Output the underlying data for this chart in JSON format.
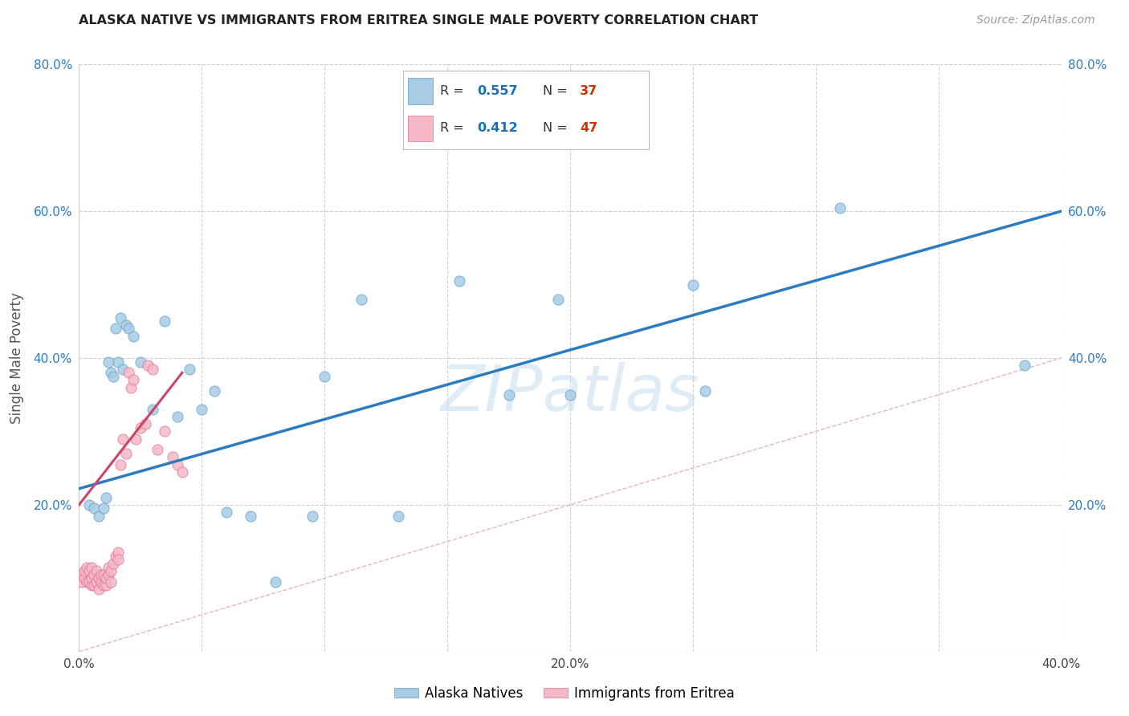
{
  "title": "ALASKA NATIVE VS IMMIGRANTS FROM ERITREA SINGLE MALE POVERTY CORRELATION CHART",
  "source": "Source: ZipAtlas.com",
  "ylabel": "Single Male Poverty",
  "xlim": [
    0.0,
    0.4
  ],
  "ylim": [
    0.0,
    0.8
  ],
  "blue_color": "#a8cce4",
  "blue_edge": "#5b9ec9",
  "pink_color": "#f4b8c8",
  "pink_edge": "#e07090",
  "line_blue": "#2a7bbf",
  "line_pink": "#cc4466",
  "diag_color": "#e0b0b8",
  "watermark_color": "#c5ddf0",
  "alaska_x": [
    0.004,
    0.006,
    0.008,
    0.01,
    0.011,
    0.012,
    0.013,
    0.014,
    0.015,
    0.016,
    0.017,
    0.018,
    0.019,
    0.02,
    0.022,
    0.025,
    0.03,
    0.035,
    0.04,
    0.045,
    0.05,
    0.055,
    0.06,
    0.07,
    0.08,
    0.095,
    0.115,
    0.155,
    0.195,
    0.25,
    0.255,
    0.31,
    0.385,
    0.1,
    0.13,
    0.175,
    0.2
  ],
  "alaska_y": [
    0.2,
    0.195,
    0.185,
    0.195,
    0.21,
    0.395,
    0.38,
    0.375,
    0.44,
    0.395,
    0.455,
    0.385,
    0.445,
    0.44,
    0.43,
    0.395,
    0.33,
    0.45,
    0.32,
    0.385,
    0.33,
    0.355,
    0.19,
    0.185,
    0.095,
    0.185,
    0.48,
    0.505,
    0.48,
    0.5,
    0.355,
    0.605,
    0.39,
    0.375,
    0.185,
    0.35,
    0.35
  ],
  "eritrea_x": [
    0.001,
    0.001,
    0.002,
    0.002,
    0.003,
    0.003,
    0.004,
    0.004,
    0.005,
    0.005,
    0.005,
    0.006,
    0.006,
    0.007,
    0.007,
    0.008,
    0.008,
    0.009,
    0.009,
    0.01,
    0.01,
    0.011,
    0.011,
    0.012,
    0.012,
    0.013,
    0.013,
    0.014,
    0.015,
    0.016,
    0.016,
    0.017,
    0.018,
    0.019,
    0.02,
    0.021,
    0.022,
    0.023,
    0.025,
    0.027,
    0.028,
    0.03,
    0.032,
    0.035,
    0.038,
    0.04,
    0.042
  ],
  "eritrea_y": [
    0.095,
    0.105,
    0.1,
    0.11,
    0.095,
    0.115,
    0.095,
    0.11,
    0.09,
    0.1,
    0.115,
    0.09,
    0.105,
    0.095,
    0.11,
    0.085,
    0.1,
    0.095,
    0.105,
    0.09,
    0.105,
    0.09,
    0.1,
    0.105,
    0.115,
    0.095,
    0.11,
    0.12,
    0.13,
    0.135,
    0.125,
    0.255,
    0.29,
    0.27,
    0.38,
    0.36,
    0.37,
    0.29,
    0.305,
    0.31,
    0.39,
    0.385,
    0.275,
    0.3,
    0.265,
    0.255,
    0.245
  ],
  "blue_line_x": [
    0.0,
    0.4
  ],
  "blue_line_y": [
    0.222,
    0.6
  ],
  "pink_line_x": [
    0.0,
    0.042
  ],
  "pink_line_y": [
    0.2,
    0.38
  ]
}
